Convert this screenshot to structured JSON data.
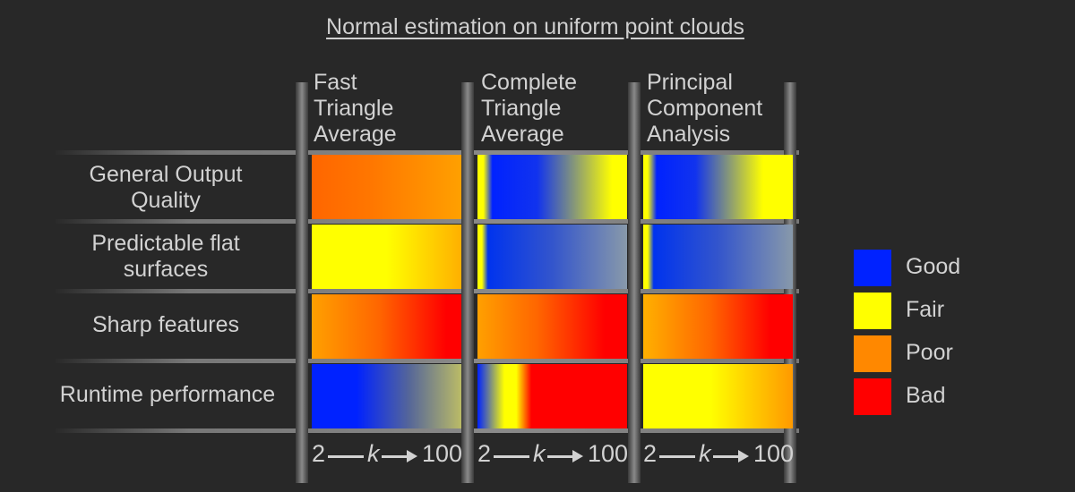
{
  "title": "Normal estimation on uniform point clouds",
  "columns": [
    {
      "lines": [
        "Fast",
        "Triangle",
        "Average"
      ]
    },
    {
      "lines": [
        "Complete",
        "Triangle",
        "Average"
      ]
    },
    {
      "lines": [
        "Principal",
        "Component",
        "Analysis"
      ]
    }
  ],
  "rows": [
    {
      "lines": [
        "General Output",
        "Quality"
      ]
    },
    {
      "lines": [
        "Predictable flat",
        "surfaces"
      ]
    },
    {
      "lines": [
        "Sharp features"
      ]
    },
    {
      "lines": [
        "Runtime performance"
      ]
    }
  ],
  "axis": {
    "low": "2",
    "var": "k",
    "high": "100"
  },
  "legend": [
    {
      "label": "Good",
      "color": "#0022ff"
    },
    {
      "label": "Fair",
      "color": "#ffff00"
    },
    {
      "label": "Poor",
      "color": "#ff8800"
    },
    {
      "label": "Bad",
      "color": "#ff0000"
    }
  ],
  "cells": [
    [
      "linear-gradient(to right,#ff6600,#ff7700 40%,#ffa000)",
      "linear-gradient(to right,#ffff00 0%,#ffff00 4%,#0022ff 10%,#1133ee 40%,#ffff00 90%,#ffff00 100%)",
      "linear-gradient(to right,#ffff00 0%,#ffff00 3%,#0022ff 9%,#1133ee 35%,#ffff00 80%,#ffff00 100%)"
    ],
    [
      "linear-gradient(to right,#ffff00 0%,#ffff00 50%,#ffb000 100%)",
      "linear-gradient(to right,#ffff00 0%,#ffff00 3%,#0033ee 7%,#3355cc 50%,#8899aa 100%)",
      "linear-gradient(to right,#ffff00 0%,#ffff00 3%,#0033ee 7%,#3355cc 50%,#8899aa 100%)"
    ],
    [
      "linear-gradient(to right,#ffa000,#ff6600 45%,#ff0000 90%)",
      "linear-gradient(to right,#ffa000,#ff6600 40%,#ff0000 85%)",
      "linear-gradient(to right,#ffb000,#ff6600 45%,#ff0000 85%)"
    ],
    [
      "linear-gradient(to right,#0022ff 0%,#0022ff 30%,#556699 65%,#bbbb66 100%)",
      "linear-gradient(to right,#0022ff 0%,#ffff00 18%,#ffff00 26%,#ff0000 36%,#ff0000 100%)",
      "linear-gradient(to right,#ffff00 0%,#ffff00 45%,#ff9900 100%)"
    ]
  ]
}
